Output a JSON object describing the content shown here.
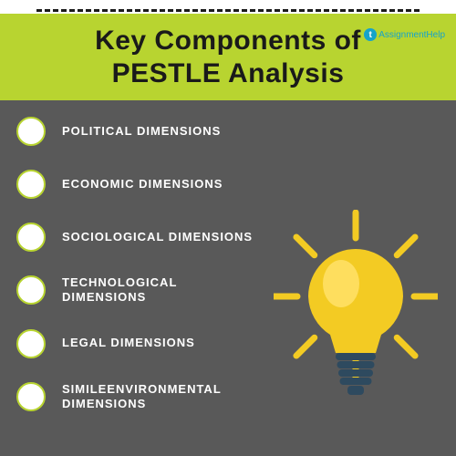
{
  "colors": {
    "header_bg": "#b8d430",
    "body_bg": "#595959",
    "title_color": "#1a1a1a",
    "dash_color": "#1a1a1a",
    "bullet_fill": "#ffffff",
    "bullet_border": "#b8d430",
    "item_text": "#ffffff",
    "logo_circle": "#16a3c9",
    "logo_text": "#16a3c9",
    "bulb_glass": "#f3cb23",
    "bulb_glass_highlight": "#ffe268",
    "bulb_base": "#2e4a5f",
    "bulb_ray": "#f3cb23"
  },
  "typography": {
    "title_fontsize": 30,
    "item_fontsize": 13
  },
  "title_line1": "Key Components of",
  "title_line2": "PESTLE Analysis",
  "logo": {
    "glyph": "t",
    "text": "AssignmentHelp"
  },
  "items": [
    {
      "label": "POLITICAL DIMENSIONS"
    },
    {
      "label": "ECONOMIC DIMENSIONS"
    },
    {
      "label": "SOCIOLOGICAL DIMENSIONS"
    },
    {
      "label": "TECHNOLOGICAL DIMENSIONS"
    },
    {
      "label": "LEGAL DIMENSIONS"
    },
    {
      "label": "SIMILEENVIRONMENTAL DIMENSIONS"
    }
  ],
  "bulb": {
    "ray_count": 8,
    "ray_length": 28,
    "ray_width": 7
  }
}
